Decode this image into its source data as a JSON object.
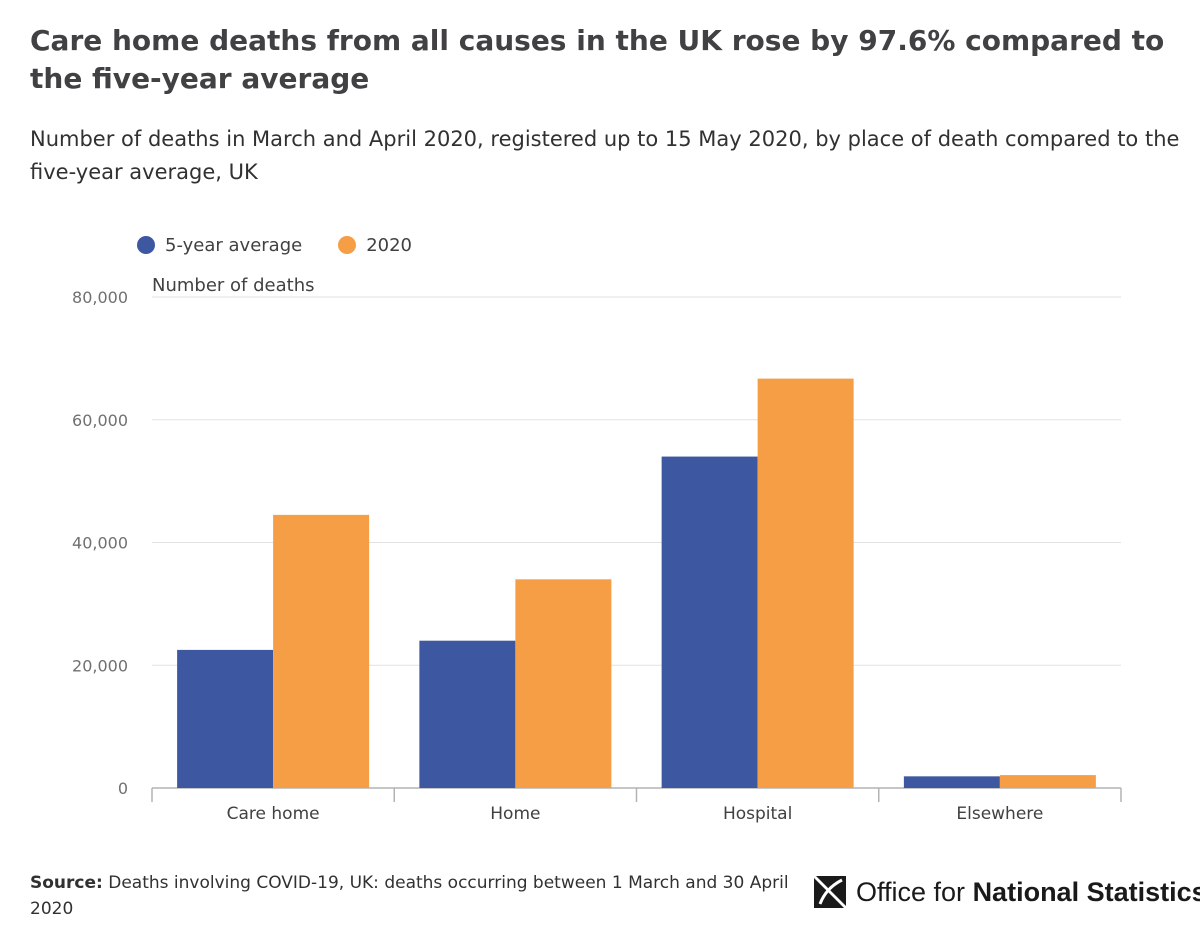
{
  "header": {
    "title": "Care home deaths from all causes in the UK rose by 97.6% compared to the five-year average",
    "subtitle": "Number of deaths in March and April 2020, registered up to 15 May 2020, by place of death compared to the five-year average, UK"
  },
  "chart_data": {
    "type": "bar",
    "categories": [
      "Care home",
      "Home",
      "Hospital",
      "Elsewhere"
    ],
    "series": [
      {
        "name": "5-year average",
        "color": "#3d58a1",
        "values": [
          22500,
          24000,
          54000,
          1900
        ]
      },
      {
        "name": "2020",
        "color": "#f59e45",
        "values": [
          44500,
          34000,
          66700,
          2100
        ]
      }
    ],
    "ylabel": "Number of deaths",
    "ylim": [
      0,
      80000
    ],
    "yticks": [
      0,
      20000,
      40000,
      60000,
      80000
    ],
    "ytick_labels": [
      "0",
      "20,000",
      "40,000",
      "60,000",
      "80,000"
    ],
    "grid": true,
    "legend_position": "top-left"
  },
  "footer": {
    "source_label": "Source:",
    "source_text": "Deaths involving COVID-19, UK: deaths occurring between 1 March and 30 April 2020",
    "logo_text_light": "Office for",
    "logo_text_bold": "National Statistics",
    "logo_icon": "ons-logo-icon"
  }
}
